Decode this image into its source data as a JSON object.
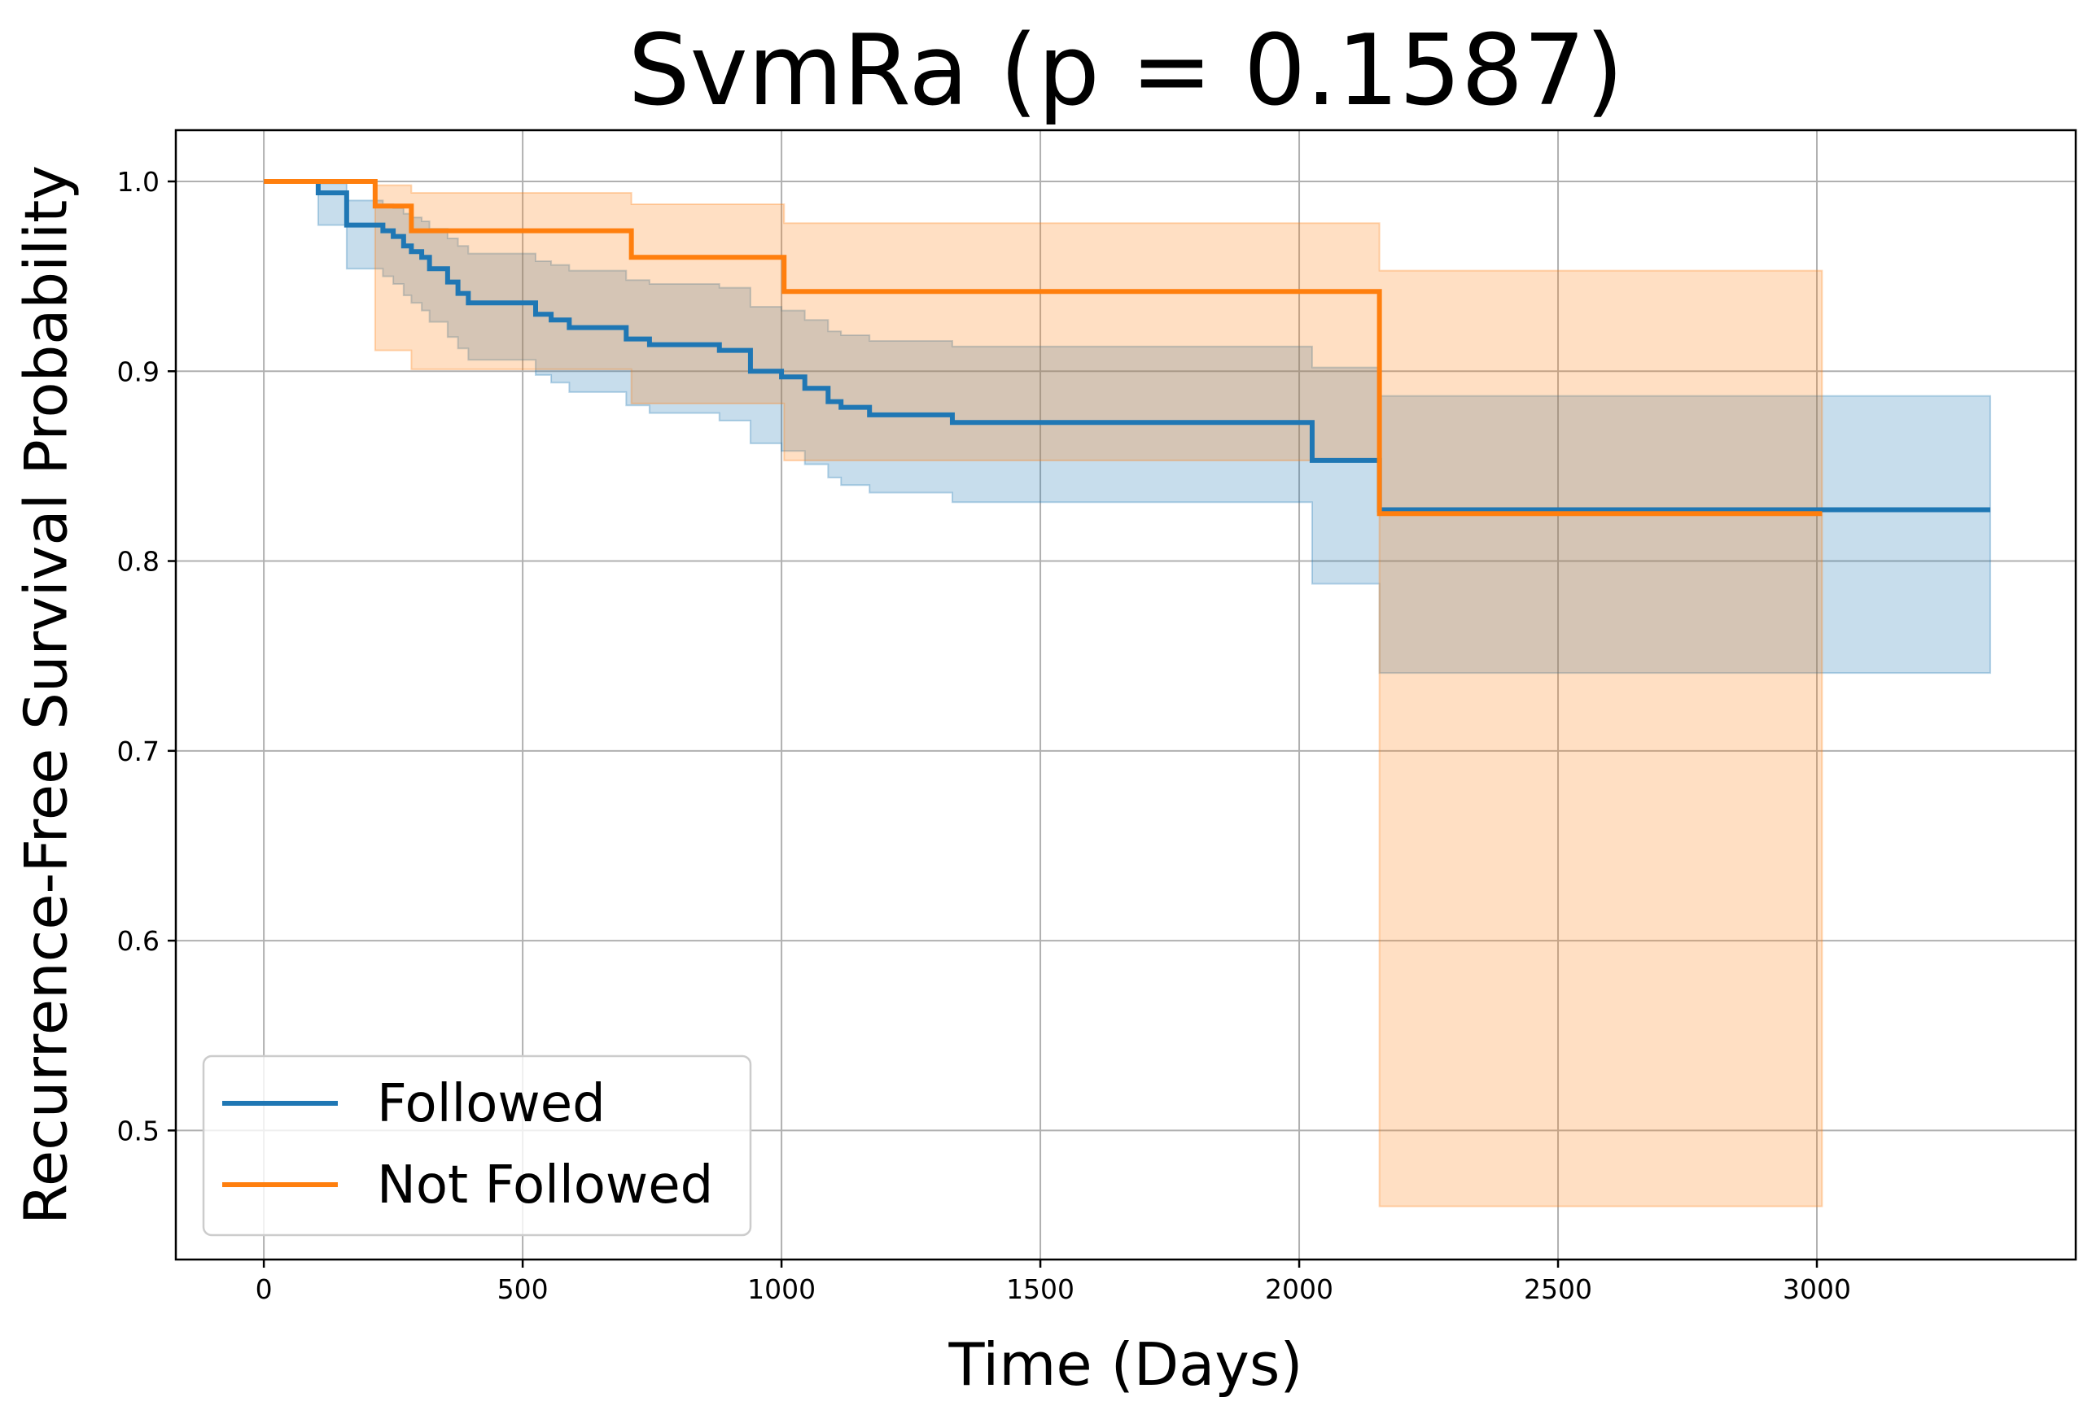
{
  "chart_data": {
    "type": "line",
    "step": "post",
    "title": "SvmRa (p = 0.1587)",
    "xlabel": "Time (Days)",
    "ylabel": "Recurrence-Free Survival Probability",
    "xlim": [
      -170,
      3500
    ],
    "ylim": [
      0.432,
      1.027
    ],
    "xticks": [
      0,
      500,
      1000,
      1500,
      2000,
      2500,
      3000
    ],
    "xtick_labels": [
      "0",
      "500",
      "1000",
      "1500",
      "2000",
      "2500",
      "3000"
    ],
    "yticks": [
      0.5,
      0.6,
      0.7,
      0.8,
      0.9,
      1.0
    ],
    "ytick_labels": [
      "0.5",
      "0.6",
      "0.7",
      "0.8",
      "0.9",
      "1.0"
    ],
    "grid": true,
    "legend": "lower-left",
    "series": [
      {
        "name": "Followed",
        "color": "#1f77b4",
        "x": [
          0,
          105,
          160,
          230,
          250,
          270,
          285,
          305,
          320,
          355,
          375,
          395,
          525,
          555,
          590,
          700,
          745,
          880,
          940,
          1000,
          1045,
          1090,
          1115,
          1170,
          1330,
          2025,
          2155,
          3335
        ],
        "y": [
          1.0,
          0.994,
          0.977,
          0.974,
          0.971,
          0.966,
          0.963,
          0.96,
          0.954,
          0.947,
          0.941,
          0.936,
          0.93,
          0.927,
          0.923,
          0.917,
          0.914,
          0.911,
          0.9,
          0.897,
          0.891,
          0.884,
          0.881,
          0.877,
          0.873,
          0.853,
          0.827,
          0.827
        ],
        "lower": [
          1.0,
          0.977,
          0.954,
          0.95,
          0.946,
          0.94,
          0.936,
          0.932,
          0.926,
          0.918,
          0.912,
          0.906,
          0.898,
          0.894,
          0.889,
          0.882,
          0.878,
          0.874,
          0.862,
          0.858,
          0.851,
          0.844,
          0.84,
          0.836,
          0.831,
          0.788,
          0.741,
          0.741
        ],
        "upper": [
          1.0,
          0.999,
          0.99,
          0.988,
          0.986,
          0.983,
          0.981,
          0.979,
          0.975,
          0.97,
          0.966,
          0.962,
          0.958,
          0.956,
          0.953,
          0.948,
          0.946,
          0.944,
          0.934,
          0.932,
          0.927,
          0.921,
          0.919,
          0.916,
          0.913,
          0.902,
          0.887,
          0.887
        ]
      },
      {
        "name": "Not Followed",
        "color": "#ff7f0e",
        "x": [
          0,
          215,
          285,
          710,
          1005,
          2155,
          3010
        ],
        "y": [
          1.0,
          0.987,
          0.974,
          0.96,
          0.942,
          0.825,
          0.825
        ],
        "lower": [
          1.0,
          0.911,
          0.901,
          0.883,
          0.853,
          0.46,
          0.46
        ],
        "upper": [
          1.0,
          0.998,
          0.994,
          0.988,
          0.978,
          0.953,
          0.953
        ]
      }
    ]
  }
}
